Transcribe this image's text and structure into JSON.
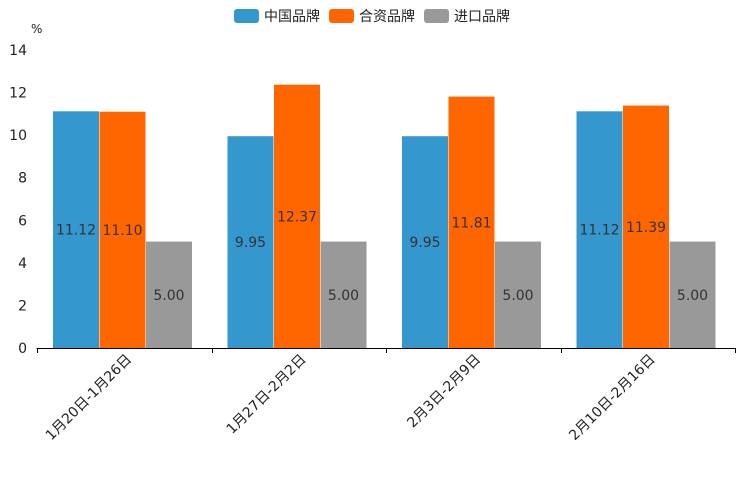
{
  "chart_data": {
    "type": "bar",
    "title": "",
    "xlabel": "",
    "ylabel": "%",
    "ylim": [
      0,
      14
    ],
    "yticks": [
      0,
      2,
      4,
      6,
      8,
      10,
      12,
      14
    ],
    "grid": false,
    "legend_position": "top-center",
    "categories": [
      "1月20日-1月26日",
      "1月27日-2月2日",
      "2月3日-2月9日",
      "2月10日-2月16日"
    ],
    "series": [
      {
        "name": "中国品牌",
        "color": "#3498cf",
        "values": [
          11.12,
          9.95,
          9.95,
          11.12
        ],
        "labels": [
          "11.12",
          "9.95",
          "9.95",
          "11.12"
        ]
      },
      {
        "name": "合资品牌",
        "color": "#ff6600",
        "values": [
          11.1,
          12.37,
          11.81,
          11.39
        ],
        "labels": [
          "11.10",
          "12.37",
          "11.81",
          "11.39"
        ]
      },
      {
        "name": "进口品牌",
        "color": "#999999",
        "values": [
          5.0,
          5.0,
          5.0,
          5.0
        ],
        "labels": [
          "5.00",
          "5.00",
          "5.00",
          "5.00"
        ]
      }
    ]
  }
}
